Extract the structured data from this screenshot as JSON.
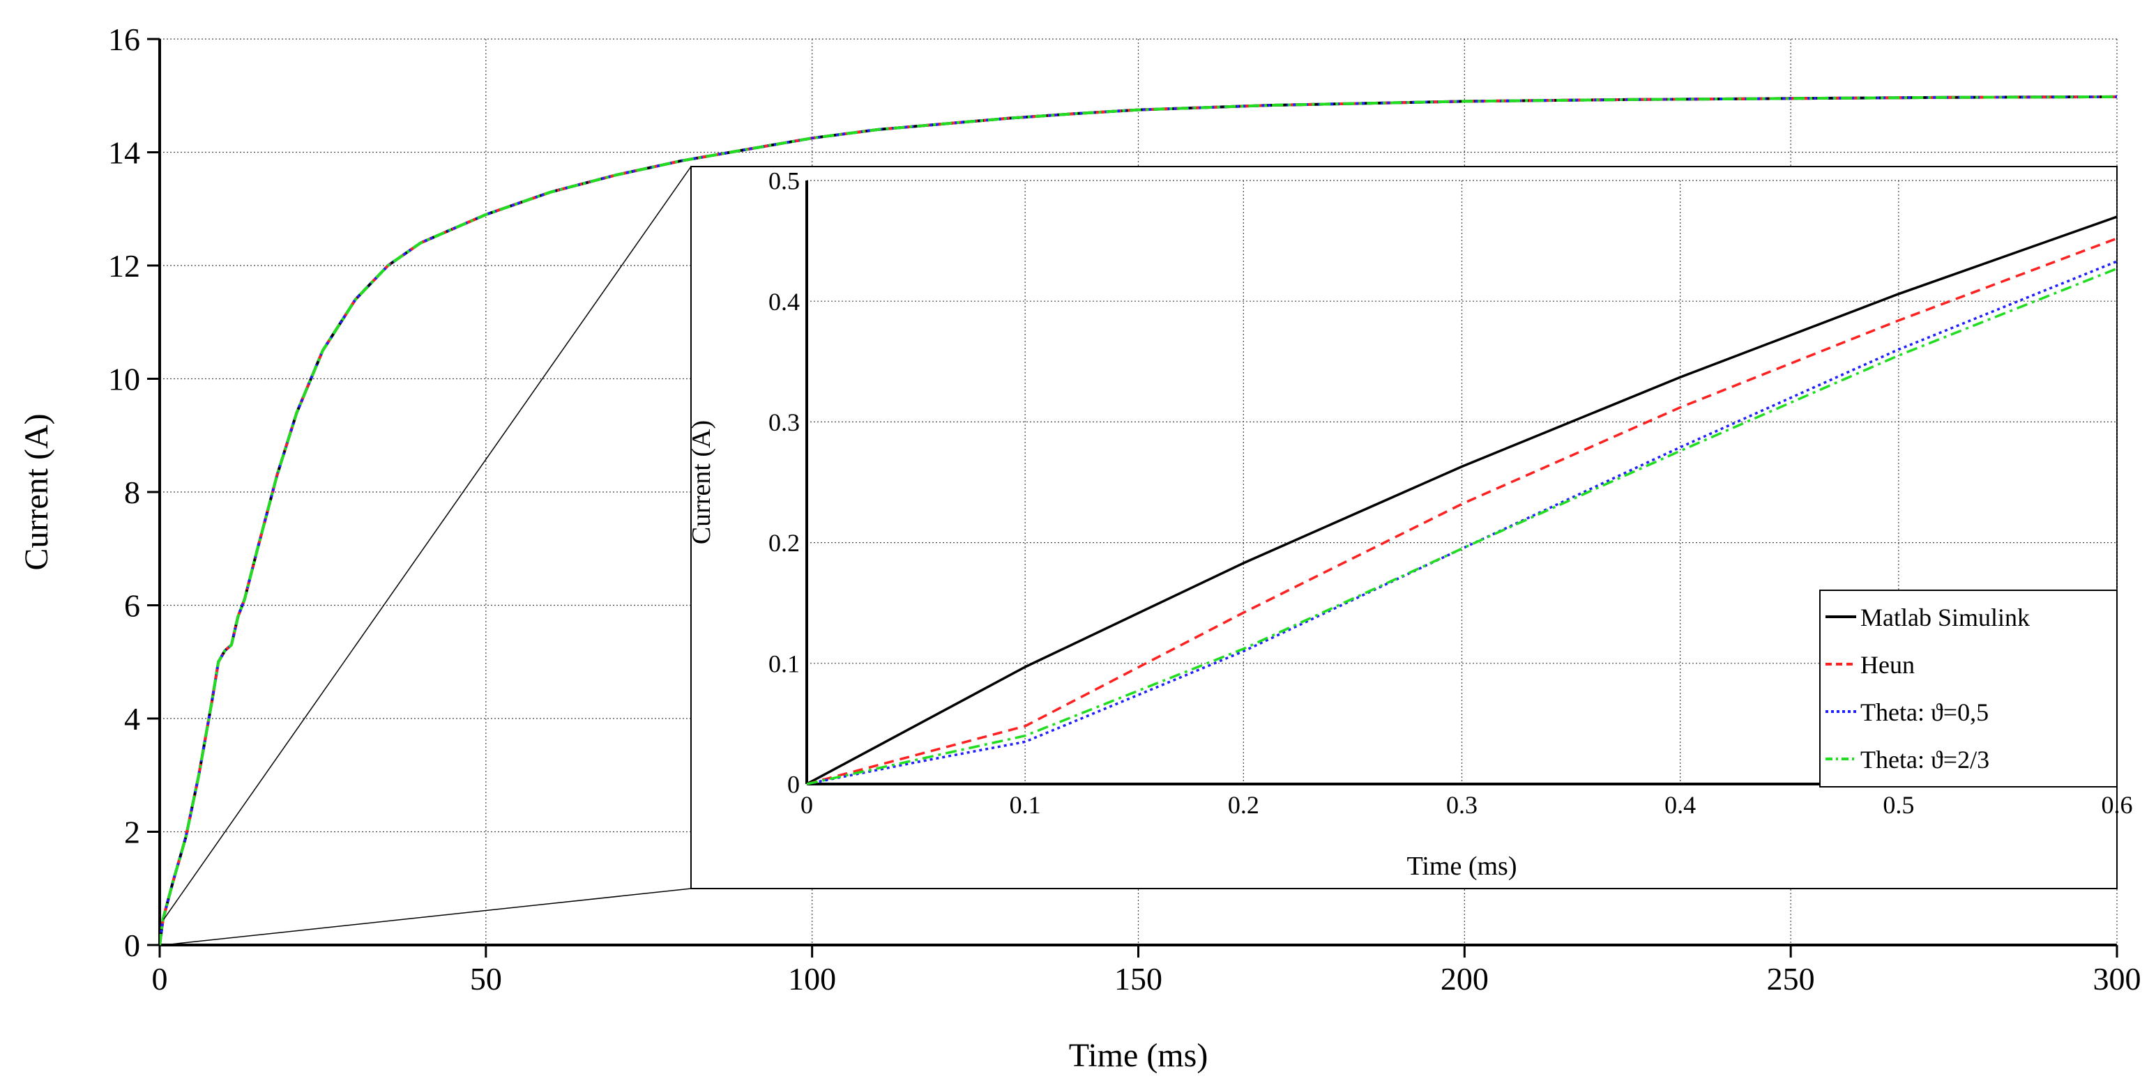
{
  "chart_data": [
    {
      "type": "line",
      "role": "main",
      "xlabel": "Time (ms)",
      "ylabel": "Current (A)",
      "xlim": [
        0,
        300
      ],
      "ylim": [
        0,
        16
      ],
      "xticks": [
        "0",
        "50",
        "100",
        "150",
        "200",
        "250",
        "300"
      ],
      "yticks": [
        "0",
        "2",
        "4",
        "6",
        "8",
        "10",
        "12",
        "14",
        "16"
      ],
      "grid": true,
      "x": [
        0,
        0.5,
        2,
        4,
        6,
        8,
        9,
        10,
        11,
        12,
        13,
        15,
        18,
        21,
        25,
        30,
        35,
        40,
        50,
        60,
        70,
        80,
        90,
        100,
        110,
        120,
        130,
        140,
        150,
        170,
        200,
        225,
        250,
        275,
        300
      ],
      "series": [
        {
          "name": "Matlab Simulink",
          "color": "#000000",
          "dash": "solid",
          "values": [
            0,
            0.45,
            1.1,
            1.9,
            3.0,
            4.3,
            5.0,
            5.2,
            5.3,
            5.8,
            6.1,
            7.0,
            8.3,
            9.4,
            10.5,
            11.4,
            12.0,
            12.4,
            12.9,
            13.3,
            13.6,
            13.85,
            14.05,
            14.25,
            14.4,
            14.5,
            14.6,
            14.68,
            14.75,
            14.83,
            14.9,
            14.93,
            14.95,
            14.97,
            14.98
          ]
        },
        {
          "name": "Heun",
          "color": "#ff2020",
          "dash": "dashed",
          "values": [
            0,
            0.45,
            1.1,
            1.9,
            3.0,
            4.3,
            5.0,
            5.2,
            5.3,
            5.8,
            6.1,
            7.0,
            8.3,
            9.4,
            10.5,
            11.4,
            12.0,
            12.4,
            12.9,
            13.3,
            13.6,
            13.85,
            14.05,
            14.25,
            14.4,
            14.5,
            14.6,
            14.68,
            14.75,
            14.83,
            14.9,
            14.93,
            14.95,
            14.97,
            14.98
          ]
        },
        {
          "name": "Theta: ϑ=0,5",
          "color": "#2020ff",
          "dash": "dotted",
          "values": [
            0,
            0.45,
            1.1,
            1.9,
            3.0,
            4.3,
            5.0,
            5.2,
            5.3,
            5.8,
            6.1,
            7.0,
            8.3,
            9.4,
            10.5,
            11.4,
            12.0,
            12.4,
            12.9,
            13.3,
            13.6,
            13.85,
            14.05,
            14.25,
            14.4,
            14.5,
            14.6,
            14.68,
            14.75,
            14.83,
            14.9,
            14.93,
            14.95,
            14.97,
            14.98
          ]
        },
        {
          "name": "Theta: ϑ=2/3",
          "color": "#20dd20",
          "dash": "dashdot",
          "values": [
            0,
            0.45,
            1.1,
            1.9,
            3.0,
            4.3,
            5.0,
            5.2,
            5.3,
            5.8,
            6.1,
            7.0,
            8.3,
            9.4,
            10.5,
            11.4,
            12.0,
            12.4,
            12.9,
            13.3,
            13.6,
            13.85,
            14.05,
            14.25,
            14.4,
            14.5,
            14.6,
            14.68,
            14.75,
            14.83,
            14.9,
            14.93,
            14.95,
            14.97,
            14.98
          ]
        }
      ]
    },
    {
      "type": "line",
      "role": "inset",
      "zoom_region": {
        "x": [
          0,
          0.6
        ],
        "y": [
          0,
          0.5
        ]
      },
      "xlabel": "Time (ms)",
      "ylabel": "Current (A)",
      "xlim": [
        0,
        0.6
      ],
      "ylim": [
        0,
        0.5
      ],
      "xticks": [
        "0",
        "0.1",
        "0.2",
        "0.3",
        "0.4",
        "0.5",
        "0.6"
      ],
      "yticks": [
        "0",
        "0.1",
        "0.2",
        "0.3",
        "0.4",
        "0.5"
      ],
      "grid": true,
      "legend_position": "bottom-right",
      "series": [
        {
          "name": "Matlab Simulink",
          "color": "#000000",
          "dash": "solid",
          "x": [
            0,
            0.1,
            0.2,
            0.3,
            0.4,
            0.5,
            0.6
          ],
          "values": [
            0,
            0.097,
            0.183,
            0.263,
            0.337,
            0.406,
            0.47
          ]
        },
        {
          "name": "Heun",
          "color": "#ff2020",
          "dash": "dashed",
          "x": [
            0,
            0.1,
            0.2,
            0.3,
            0.4,
            0.5,
            0.6
          ],
          "values": [
            0,
            0.048,
            0.142,
            0.232,
            0.312,
            0.384,
            0.452
          ]
        },
        {
          "name": "Theta: ϑ=0,5",
          "color": "#2020ff",
          "dash": "dotted",
          "x": [
            0,
            0.05,
            0.1,
            0.2,
            0.3,
            0.4,
            0.5,
            0.6
          ],
          "values": [
            0,
            0.018,
            0.035,
            0.11,
            0.195,
            0.279,
            0.36,
            0.433
          ]
        },
        {
          "name": "Theta: ϑ=2/3",
          "color": "#20dd20",
          "dash": "dashdot",
          "x": [
            0,
            0.05,
            0.1,
            0.2,
            0.3,
            0.4,
            0.5,
            0.6
          ],
          "values": [
            0,
            0.02,
            0.04,
            0.112,
            0.195,
            0.276,
            0.355,
            0.427
          ]
        }
      ]
    }
  ]
}
